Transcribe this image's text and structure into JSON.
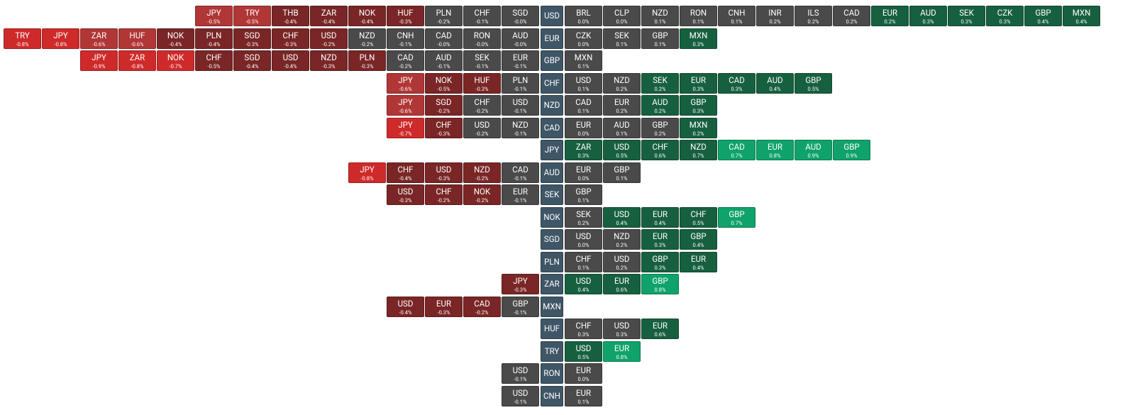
{
  "rows": [
    {
      "base": "USD",
      "left": [
        {
          "code": "JPY",
          "change": "-0.5%",
          "color": "#b13636"
        },
        {
          "code": "TRY",
          "change": "-0.5%",
          "color": "#b13636"
        },
        {
          "code": "THB",
          "change": "-0.4%",
          "color": "#7a2626"
        },
        {
          "code": "ZAR",
          "change": "-0.4%",
          "color": "#7a2626"
        },
        {
          "code": "NOK",
          "change": "-0.4%",
          "color": "#7a2626"
        },
        {
          "code": "HUF",
          "change": "-0.3%",
          "color": "#7a2626"
        },
        {
          "code": "PLN",
          "change": "-0.2%",
          "color": "#4a4a4a"
        },
        {
          "code": "CHF",
          "change": "-0.1%",
          "color": "#4a4a4a"
        },
        {
          "code": "SGD",
          "change": "-0.0%",
          "color": "#4a4a4a"
        }
      ],
      "right": [
        {
          "code": "BRL",
          "change": "0.0%",
          "color": "#4a4a4a"
        },
        {
          "code": "CLP",
          "change": "0.0%",
          "color": "#4a4a4a"
        },
        {
          "code": "NZD",
          "change": "0.1%",
          "color": "#4a4a4a"
        },
        {
          "code": "RON",
          "change": "0.1%",
          "color": "#4a4a4a"
        },
        {
          "code": "CNH",
          "change": "0.1%",
          "color": "#4a4a4a"
        },
        {
          "code": "INR",
          "change": "0.2%",
          "color": "#4a4a4a"
        },
        {
          "code": "ILS",
          "change": "0.2%",
          "color": "#4a4a4a"
        },
        {
          "code": "CAD",
          "change": "0.2%",
          "color": "#4a4a4a"
        },
        {
          "code": "EUR",
          "change": "0.2%",
          "color": "#17603f"
        },
        {
          "code": "AUD",
          "change": "0.3%",
          "color": "#17603f"
        },
        {
          "code": "SEK",
          "change": "0.3%",
          "color": "#17603f"
        },
        {
          "code": "CZK",
          "change": "0.3%",
          "color": "#17603f"
        },
        {
          "code": "GBP",
          "change": "0.4%",
          "color": "#17603f"
        },
        {
          "code": "MXN",
          "change": "0.4%",
          "color": "#17603f"
        }
      ]
    },
    {
      "base": "EUR",
      "left": [
        {
          "code": "TRY",
          "change": "-0.8%",
          "color": "#cf2a2a"
        },
        {
          "code": "JPY",
          "change": "-0.8%",
          "color": "#cf2a2a"
        },
        {
          "code": "ZAR",
          "change": "-0.6%",
          "color": "#b13636"
        },
        {
          "code": "HUF",
          "change": "-0.6%",
          "color": "#b13636"
        },
        {
          "code": "NOK",
          "change": "-0.4%",
          "color": "#7a2626"
        },
        {
          "code": "PLN",
          "change": "-0.4%",
          "color": "#7a2626"
        },
        {
          "code": "SGD",
          "change": "-0.3%",
          "color": "#7a2626"
        },
        {
          "code": "CHF",
          "change": "-0.3%",
          "color": "#7a2626"
        },
        {
          "code": "USD",
          "change": "-0.2%",
          "color": "#7a2626"
        },
        {
          "code": "NZD",
          "change": "-0.2%",
          "color": "#4a4a4a"
        },
        {
          "code": "CNH",
          "change": "-0.1%",
          "color": "#4a4a4a"
        },
        {
          "code": "CAD",
          "change": "-0.0%",
          "color": "#4a4a4a"
        },
        {
          "code": "RON",
          "change": "-0.0%",
          "color": "#4a4a4a"
        },
        {
          "code": "AUD",
          "change": "-0.0%",
          "color": "#4a4a4a"
        }
      ],
      "right": [
        {
          "code": "CZK",
          "change": "0.0%",
          "color": "#4a4a4a"
        },
        {
          "code": "SEK",
          "change": "0.1%",
          "color": "#4a4a4a"
        },
        {
          "code": "GBP",
          "change": "0.1%",
          "color": "#4a4a4a"
        },
        {
          "code": "MXN",
          "change": "0.3%",
          "color": "#17603f"
        }
      ]
    },
    {
      "base": "GBP",
      "left": [
        {
          "code": "JPY",
          "change": "-0.9%",
          "color": "#cf2a2a"
        },
        {
          "code": "ZAR",
          "change": "-0.8%",
          "color": "#cf2a2a"
        },
        {
          "code": "NOK",
          "change": "-0.7%",
          "color": "#cf2a2a"
        },
        {
          "code": "CHF",
          "change": "-0.5%",
          "color": "#7a2626"
        },
        {
          "code": "SGD",
          "change": "-0.4%",
          "color": "#7a2626"
        },
        {
          "code": "USD",
          "change": "-0.4%",
          "color": "#7a2626"
        },
        {
          "code": "NZD",
          "change": "-0.3%",
          "color": "#7a2626"
        },
        {
          "code": "PLN",
          "change": "-0.3%",
          "color": "#7a2626"
        },
        {
          "code": "CAD",
          "change": "-0.2%",
          "color": "#4a4a4a"
        },
        {
          "code": "AUD",
          "change": "-0.1%",
          "color": "#4a4a4a"
        },
        {
          "code": "SEK",
          "change": "-0.1%",
          "color": "#4a4a4a"
        },
        {
          "code": "EUR",
          "change": "-0.1%",
          "color": "#4a4a4a"
        }
      ],
      "right": [
        {
          "code": "MXN",
          "change": "0.1%",
          "color": "#4a4a4a"
        }
      ]
    },
    {
      "base": "CHF",
      "left": [
        {
          "code": "JPY",
          "change": "-0.6%",
          "color": "#b13636"
        },
        {
          "code": "NOK",
          "change": "-0.5%",
          "color": "#7a2626"
        },
        {
          "code": "HUF",
          "change": "-0.3%",
          "color": "#7a2626"
        },
        {
          "code": "PLN",
          "change": "-0.1%",
          "color": "#4a4a4a"
        }
      ],
      "right": [
        {
          "code": "USD",
          "change": "0.1%",
          "color": "#4a4a4a"
        },
        {
          "code": "NZD",
          "change": "0.2%",
          "color": "#4a4a4a"
        },
        {
          "code": "SEK",
          "change": "0.2%",
          "color": "#17603f"
        },
        {
          "code": "EUR",
          "change": "0.3%",
          "color": "#17603f"
        },
        {
          "code": "CAD",
          "change": "0.3%",
          "color": "#17603f"
        },
        {
          "code": "AUD",
          "change": "0.4%",
          "color": "#17603f"
        },
        {
          "code": "GBP",
          "change": "0.5%",
          "color": "#17603f"
        }
      ]
    },
    {
      "base": "NZD",
      "left": [
        {
          "code": "JPY",
          "change": "-0.6%",
          "color": "#b13636"
        },
        {
          "code": "SGD",
          "change": "-0.2%",
          "color": "#7a2626"
        },
        {
          "code": "CHF",
          "change": "-0.2%",
          "color": "#4a4a4a"
        },
        {
          "code": "USD",
          "change": "-0.1%",
          "color": "#4a4a4a"
        }
      ],
      "right": [
        {
          "code": "CAD",
          "change": "0.1%",
          "color": "#4a4a4a"
        },
        {
          "code": "EUR",
          "change": "0.2%",
          "color": "#4a4a4a"
        },
        {
          "code": "AUD",
          "change": "0.2%",
          "color": "#17603f"
        },
        {
          "code": "GBP",
          "change": "0.3%",
          "color": "#17603f"
        }
      ]
    },
    {
      "base": "CAD",
      "left": [
        {
          "code": "JPY",
          "change": "-0.7%",
          "color": "#cf2a2a"
        },
        {
          "code": "CHF",
          "change": "-0.3%",
          "color": "#7a2626"
        },
        {
          "code": "USD",
          "change": "-0.2%",
          "color": "#4a4a4a"
        },
        {
          "code": "NZD",
          "change": "-0.1%",
          "color": "#4a4a4a"
        }
      ],
      "right": [
        {
          "code": "EUR",
          "change": "0.0%",
          "color": "#4a4a4a"
        },
        {
          "code": "AUD",
          "change": "0.1%",
          "color": "#4a4a4a"
        },
        {
          "code": "GBP",
          "change": "0.2%",
          "color": "#4a4a4a"
        },
        {
          "code": "MXN",
          "change": "0.2%",
          "color": "#17603f"
        }
      ]
    },
    {
      "base": "JPY",
      "left": [],
      "right": [
        {
          "code": "ZAR",
          "change": "0.3%",
          "color": "#17603f"
        },
        {
          "code": "USD",
          "change": "0.5%",
          "color": "#17603f"
        },
        {
          "code": "CHF",
          "change": "0.6%",
          "color": "#17603f"
        },
        {
          "code": "NZD",
          "change": "0.7%",
          "color": "#17603f"
        },
        {
          "code": "CAD",
          "change": "0.7%",
          "color": "#0fa36b"
        },
        {
          "code": "EUR",
          "change": "0.8%",
          "color": "#0fa36b"
        },
        {
          "code": "AUD",
          "change": "0.9%",
          "color": "#0fa36b"
        },
        {
          "code": "GBP",
          "change": "0.9%",
          "color": "#0fa36b"
        }
      ]
    },
    {
      "base": "AUD",
      "left": [
        {
          "code": "JPY",
          "change": "-0.8%",
          "color": "#cf2a2a"
        },
        {
          "code": "CHF",
          "change": "-0.4%",
          "color": "#7a2626"
        },
        {
          "code": "USD",
          "change": "-0.3%",
          "color": "#7a2626"
        },
        {
          "code": "NZD",
          "change": "-0.2%",
          "color": "#7a2626"
        },
        {
          "code": "CAD",
          "change": "-0.1%",
          "color": "#4a4a4a"
        }
      ],
      "right": [
        {
          "code": "EUR",
          "change": "0.0%",
          "color": "#4a4a4a"
        },
        {
          "code": "GBP",
          "change": "0.1%",
          "color": "#4a4a4a"
        }
      ]
    },
    {
      "base": "SEK",
      "left": [
        {
          "code": "USD",
          "change": "-0.3%",
          "color": "#7a2626"
        },
        {
          "code": "CHF",
          "change": "-0.2%",
          "color": "#7a2626"
        },
        {
          "code": "NOK",
          "change": "-0.2%",
          "color": "#7a2626"
        },
        {
          "code": "EUR",
          "change": "-0.1%",
          "color": "#4a4a4a"
        }
      ],
      "right": [
        {
          "code": "GBP",
          "change": "0.1%",
          "color": "#4a4a4a"
        }
      ]
    },
    {
      "base": "NOK",
      "left": [],
      "right": [
        {
          "code": "SEK",
          "change": "0.2%",
          "color": "#4a4a4a"
        },
        {
          "code": "USD",
          "change": "0.4%",
          "color": "#17603f"
        },
        {
          "code": "EUR",
          "change": "0.4%",
          "color": "#17603f"
        },
        {
          "code": "CHF",
          "change": "0.5%",
          "color": "#17603f"
        },
        {
          "code": "GBP",
          "change": "0.7%",
          "color": "#0fa36b"
        }
      ]
    },
    {
      "base": "SGD",
      "left": [],
      "right": [
        {
          "code": "USD",
          "change": "0.0%",
          "color": "#4a4a4a"
        },
        {
          "code": "NZD",
          "change": "0.2%",
          "color": "#4a4a4a"
        },
        {
          "code": "EUR",
          "change": "0.3%",
          "color": "#17603f"
        },
        {
          "code": "GBP",
          "change": "0.4%",
          "color": "#17603f"
        }
      ]
    },
    {
      "base": "PLN",
      "left": [],
      "right": [
        {
          "code": "CHF",
          "change": "0.1%",
          "color": "#4a4a4a"
        },
        {
          "code": "USD",
          "change": "0.2%",
          "color": "#4a4a4a"
        },
        {
          "code": "GBP",
          "change": "0.3%",
          "color": "#17603f"
        },
        {
          "code": "EUR",
          "change": "0.4%",
          "color": "#17603f"
        }
      ]
    },
    {
      "base": "ZAR",
      "left": [
        {
          "code": "JPY",
          "change": "-0.3%",
          "color": "#7a2626"
        }
      ],
      "right": [
        {
          "code": "USD",
          "change": "0.4%",
          "color": "#17603f"
        },
        {
          "code": "EUR",
          "change": "0.6%",
          "color": "#17603f"
        },
        {
          "code": "GBP",
          "change": "0.8%",
          "color": "#0fa36b"
        }
      ]
    },
    {
      "base": "MXN",
      "left": [
        {
          "code": "USD",
          "change": "-0.4%",
          "color": "#7a2626"
        },
        {
          "code": "EUR",
          "change": "-0.3%",
          "color": "#7a2626"
        },
        {
          "code": "CAD",
          "change": "-0.2%",
          "color": "#7a2626"
        },
        {
          "code": "GBP",
          "change": "-0.1%",
          "color": "#4a4a4a"
        }
      ],
      "right": []
    },
    {
      "base": "HUF",
      "left": [],
      "right": [
        {
          "code": "CHF",
          "change": "0.3%",
          "color": "#4a4a4a"
        },
        {
          "code": "USD",
          "change": "0.3%",
          "color": "#4a4a4a"
        },
        {
          "code": "EUR",
          "change": "0.6%",
          "color": "#17603f"
        }
      ]
    },
    {
      "base": "TRY",
      "left": [],
      "right": [
        {
          "code": "USD",
          "change": "0.5%",
          "color": "#17603f"
        },
        {
          "code": "EUR",
          "change": "0.8%",
          "color": "#0fa36b"
        }
      ]
    },
    {
      "base": "RON",
      "left": [
        {
          "code": "USD",
          "change": "-0.1%",
          "color": "#4a4a4a"
        }
      ],
      "right": [
        {
          "code": "EUR",
          "change": "0.0%",
          "color": "#4a4a4a"
        }
      ]
    },
    {
      "base": "CNH",
      "left": [
        {
          "code": "USD",
          "change": "-0.1%",
          "color": "#4a4a4a"
        }
      ],
      "right": [
        {
          "code": "EUR",
          "change": "0.1%",
          "color": "#4a4a4a"
        }
      ]
    }
  ]
}
